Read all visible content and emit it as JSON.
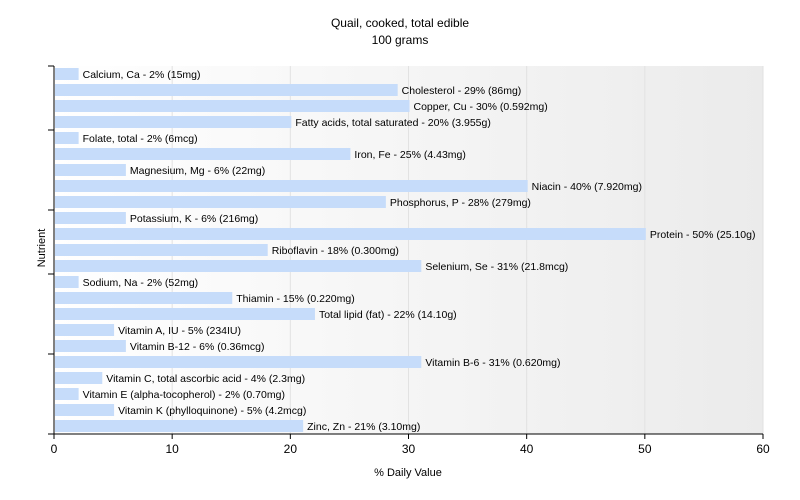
{
  "chart_data": {
    "type": "bar",
    "orientation": "horizontal",
    "title": "Quail, cooked, total edible",
    "subtitle": "100 grams",
    "xlabel": "% Daily Value",
    "ylabel": "Nutrient",
    "xlim": [
      0,
      60
    ],
    "xticks": [
      0,
      10,
      20,
      30,
      40,
      50,
      60
    ],
    "bar_color": "#c6dcfa",
    "categories": [
      "Calcium, Ca",
      "Cholesterol",
      "Copper, Cu",
      "Fatty acids, total saturated",
      "Folate, total",
      "Iron, Fe",
      "Magnesium, Mg",
      "Niacin",
      "Phosphorus, P",
      "Potassium, K",
      "Protein",
      "Riboflavin",
      "Selenium, Se",
      "Sodium, Na",
      "Thiamin",
      "Total lipid (fat)",
      "Vitamin A, IU",
      "Vitamin B-12",
      "Vitamin B-6",
      "Vitamin C, total ascorbic acid",
      "Vitamin E (alpha-tocopherol)",
      "Vitamin K (phylloquinone)",
      "Zinc, Zn"
    ],
    "values": [
      2,
      29,
      30,
      20,
      2,
      25,
      6,
      40,
      28,
      6,
      50,
      18,
      31,
      2,
      15,
      22,
      5,
      6,
      31,
      4,
      2,
      5,
      21
    ],
    "labels": [
      "Calcium, Ca - 2% (15mg)",
      "Cholesterol - 29% (86mg)",
      "Copper, Cu - 30% (0.592mg)",
      "Fatty acids, total saturated - 20% (3.955g)",
      "Folate, total - 2% (6mcg)",
      "Iron, Fe - 25% (4.43mg)",
      "Magnesium, Mg - 6% (22mg)",
      "Niacin - 40% (7.920mg)",
      "Phosphorus, P - 28% (279mg)",
      "Potassium, K - 6% (216mg)",
      "Protein - 50% (25.10g)",
      "Riboflavin - 18% (0.300mg)",
      "Selenium, Se - 31% (21.8mcg)",
      "Sodium, Na - 2% (52mg)",
      "Thiamin - 15% (0.220mg)",
      "Total lipid (fat) - 22% (14.10g)",
      "Vitamin A, IU - 5% (234IU)",
      "Vitamin B-12 - 6% (0.36mcg)",
      "Vitamin B-6 - 31% (0.620mg)",
      "Vitamin C, total ascorbic acid - 4% (2.3mg)",
      "Vitamin E (alpha-tocopherol) - 2% (0.70mg)",
      "Vitamin K (phylloquinone) - 5% (4.2mcg)",
      "Zinc, Zn - 21% (3.10mg)"
    ]
  }
}
